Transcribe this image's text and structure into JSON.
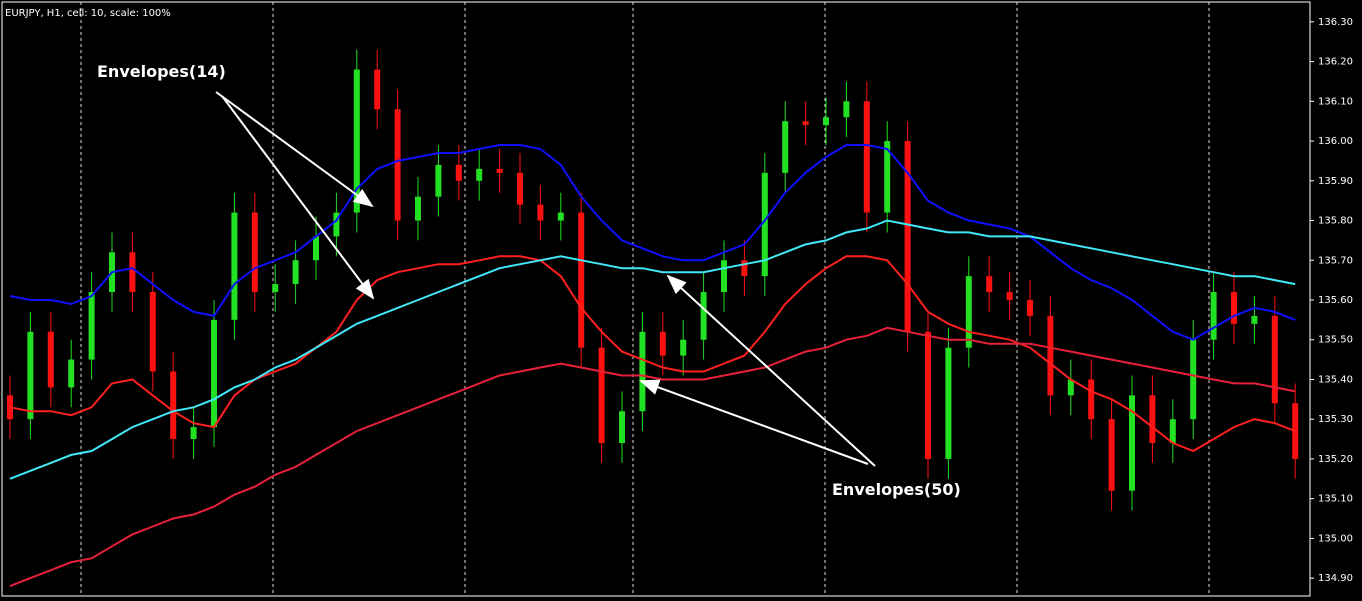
{
  "chart_data": {
    "type": "candlestick",
    "title": "EURJPY, H1, cell: 10, scale: 100%",
    "up_color": "#22e022",
    "down_color": "#ff1010",
    "ylim": [
      134.855,
      136.35
    ],
    "yticks": [
      {
        "value": 136.3,
        "label": "136.30"
      },
      {
        "value": 136.2,
        "label": "136.20"
      },
      {
        "value": 136.1,
        "label": "136.10"
      },
      {
        "value": 136,
        "label": "136.00"
      },
      {
        "value": 135.9,
        "label": "135.90"
      },
      {
        "value": 135.8,
        "label": "135.80"
      },
      {
        "value": 135.7,
        "label": "135.70"
      },
      {
        "value": 135.6,
        "label": "135.60"
      },
      {
        "value": 135.5,
        "label": "135.50"
      },
      {
        "value": 135.4,
        "label": "135.40"
      },
      {
        "value": 135.3,
        "label": "135.30"
      },
      {
        "value": 135.2,
        "label": "135.20"
      },
      {
        "value": 135.1,
        "label": "135.10"
      },
      {
        "value": 135,
        "label": "135.00"
      },
      {
        "value": 134.9,
        "label": "134.90"
      }
    ],
    "ohlc": [
      [
        135.36,
        135.41,
        135.25,
        135.3
      ],
      [
        135.3,
        135.57,
        135.25,
        135.52
      ],
      [
        135.52,
        135.57,
        135.33,
        135.38
      ],
      [
        135.38,
        135.5,
        135.33,
        135.45
      ],
      [
        135.45,
        135.67,
        135.4,
        135.62
      ],
      [
        135.62,
        135.77,
        135.57,
        135.72
      ],
      [
        135.72,
        135.77,
        135.57,
        135.62
      ],
      [
        135.62,
        135.67,
        135.37,
        135.42
      ],
      [
        135.42,
        135.47,
        135.2,
        135.25
      ],
      [
        135.25,
        135.33,
        135.2,
        135.28
      ],
      [
        135.28,
        135.6,
        135.23,
        135.55
      ],
      [
        135.55,
        135.87,
        135.5,
        135.82
      ],
      [
        135.82,
        135.87,
        135.57,
        135.62
      ],
      [
        135.62,
        135.69,
        135.57,
        135.64
      ],
      [
        135.64,
        135.75,
        135.59,
        135.7
      ],
      [
        135.7,
        135.81,
        135.65,
        135.76
      ],
      [
        135.76,
        135.87,
        135.71,
        135.82
      ],
      [
        135.82,
        136.23,
        135.77,
        136.18
      ],
      [
        136.18,
        136.23,
        136.03,
        136.08
      ],
      [
        136.08,
        136.13,
        135.75,
        135.8
      ],
      [
        135.8,
        135.91,
        135.75,
        135.86
      ],
      [
        135.86,
        135.99,
        135.81,
        135.94
      ],
      [
        135.94,
        135.99,
        135.85,
        135.9
      ],
      [
        135.9,
        135.98,
        135.85,
        135.93
      ],
      [
        135.93,
        135.98,
        135.87,
        135.92
      ],
      [
        135.92,
        135.97,
        135.79,
        135.84
      ],
      [
        135.84,
        135.89,
        135.75,
        135.8
      ],
      [
        135.8,
        135.87,
        135.75,
        135.82
      ],
      [
        135.82,
        135.87,
        135.43,
        135.48
      ],
      [
        135.48,
        135.53,
        135.19,
        135.24
      ],
      [
        135.24,
        135.37,
        135.19,
        135.32
      ],
      [
        135.32,
        135.57,
        135.27,
        135.52
      ],
      [
        135.52,
        135.57,
        135.41,
        135.46
      ],
      [
        135.46,
        135.55,
        135.41,
        135.5
      ],
      [
        135.5,
        135.67,
        135.45,
        135.62
      ],
      [
        135.62,
        135.75,
        135.57,
        135.7
      ],
      [
        135.7,
        135.75,
        135.61,
        135.66
      ],
      [
        135.66,
        135.97,
        135.61,
        135.92
      ],
      [
        135.92,
        136.1,
        135.87,
        136.05
      ],
      [
        136.05,
        136.1,
        135.99,
        136.04
      ],
      [
        136.04,
        136.11,
        135.99,
        136.06
      ],
      [
        136.06,
        136.15,
        136.01,
        136.1
      ],
      [
        136.1,
        136.15,
        135.77,
        135.82
      ],
      [
        135.82,
        136.05,
        135.77,
        136.0
      ],
      [
        136.0,
        136.05,
        135.47,
        135.52
      ],
      [
        135.52,
        135.57,
        135.15,
        135.2
      ],
      [
        135.2,
        135.53,
        135.15,
        135.48
      ],
      [
        135.48,
        135.71,
        135.43,
        135.66
      ],
      [
        135.66,
        135.71,
        135.57,
        135.62
      ],
      [
        135.62,
        135.67,
        135.55,
        135.6
      ],
      [
        135.6,
        135.65,
        135.51,
        135.56
      ],
      [
        135.56,
        135.61,
        135.31,
        135.36
      ],
      [
        135.36,
        135.45,
        135.31,
        135.4
      ],
      [
        135.4,
        135.45,
        135.25,
        135.3
      ],
      [
        135.3,
        135.35,
        135.07,
        135.12
      ],
      [
        135.12,
        135.41,
        135.07,
        135.36
      ],
      [
        135.36,
        135.41,
        135.19,
        135.24
      ],
      [
        135.24,
        135.35,
        135.19,
        135.3
      ],
      [
        135.3,
        135.55,
        135.25,
        135.5
      ],
      [
        135.5,
        135.67,
        135.45,
        135.62
      ],
      [
        135.62,
        135.67,
        135.49,
        135.54
      ],
      [
        135.54,
        135.61,
        135.49,
        135.56
      ],
      [
        135.56,
        135.61,
        135.29,
        135.34
      ],
      [
        135.34,
        135.39,
        135.15,
        135.2
      ]
    ],
    "lines": [
      {
        "color": "#1010ff",
        "values": [
          135.61,
          135.6,
          135.6,
          135.59,
          135.61,
          135.67,
          135.68,
          135.64,
          135.6,
          135.57,
          135.56,
          135.64,
          135.68,
          135.7,
          135.72,
          135.76,
          135.8,
          135.88,
          135.93,
          135.95,
          135.96,
          135.97,
          135.97,
          135.98,
          135.99,
          135.99,
          135.98,
          135.94,
          135.86,
          135.8,
          135.75,
          135.73,
          135.71,
          135.7,
          135.7,
          135.72,
          135.74,
          135.8,
          135.87,
          135.92,
          135.96,
          135.99,
          135.99,
          135.98,
          135.92,
          135.85,
          135.82,
          135.8,
          135.79,
          135.78,
          135.76,
          135.72,
          135.68,
          135.65,
          135.63,
          135.6,
          135.56,
          135.52,
          135.5,
          135.53,
          135.56,
          135.58,
          135.57,
          135.55
        ]
      },
      {
        "color": "#ff2020",
        "values": [
          135.33,
          135.32,
          135.32,
          135.31,
          135.33,
          135.39,
          135.4,
          135.36,
          135.32,
          135.29,
          135.28,
          135.36,
          135.4,
          135.42,
          135.44,
          135.48,
          135.52,
          135.6,
          135.65,
          135.67,
          135.68,
          135.69,
          135.69,
          135.7,
          135.71,
          135.71,
          135.7,
          135.66,
          135.58,
          135.52,
          135.47,
          135.45,
          135.43,
          135.42,
          135.42,
          135.44,
          135.46,
          135.52,
          135.59,
          135.64,
          135.68,
          135.71,
          135.71,
          135.7,
          135.64,
          135.57,
          135.54,
          135.52,
          135.51,
          135.5,
          135.48,
          135.44,
          135.4,
          135.37,
          135.35,
          135.32,
          135.28,
          135.24,
          135.22,
          135.25,
          135.28,
          135.3,
          135.29,
          135.27
        ]
      },
      {
        "color": "#40e8f8",
        "values": [
          135.15,
          135.17,
          135.19,
          135.21,
          135.22,
          135.25,
          135.28,
          135.3,
          135.32,
          135.33,
          135.35,
          135.38,
          135.4,
          135.43,
          135.45,
          135.48,
          135.51,
          135.54,
          135.56,
          135.58,
          135.6,
          135.62,
          135.64,
          135.66,
          135.68,
          135.69,
          135.7,
          135.71,
          135.7,
          135.69,
          135.68,
          135.68,
          135.67,
          135.67,
          135.67,
          135.68,
          135.69,
          135.7,
          135.72,
          135.74,
          135.75,
          135.77,
          135.78,
          135.8,
          135.79,
          135.78,
          135.77,
          135.77,
          135.76,
          135.76,
          135.76,
          135.75,
          135.74,
          135.73,
          135.72,
          135.71,
          135.7,
          135.69,
          135.68,
          135.67,
          135.66,
          135.66,
          135.65,
          135.64
        ]
      },
      {
        "color": "#e8203a",
        "values": [
          134.88,
          134.9,
          134.92,
          134.94,
          134.95,
          134.98,
          135.01,
          135.03,
          135.05,
          135.06,
          135.08,
          135.11,
          135.13,
          135.16,
          135.18,
          135.21,
          135.24,
          135.27,
          135.29,
          135.31,
          135.33,
          135.35,
          135.37,
          135.39,
          135.41,
          135.42,
          135.43,
          135.44,
          135.43,
          135.42,
          135.41,
          135.41,
          135.4,
          135.4,
          135.4,
          135.41,
          135.42,
          135.43,
          135.45,
          135.47,
          135.48,
          135.5,
          135.51,
          135.53,
          135.52,
          135.51,
          135.5,
          135.5,
          135.49,
          135.49,
          135.49,
          135.48,
          135.47,
          135.46,
          135.45,
          135.44,
          135.43,
          135.42,
          135.41,
          135.4,
          135.39,
          135.39,
          135.38,
          135.37
        ]
      }
    ],
    "annotations": [
      "Envelopes(14)",
      "Envelopes(50)"
    ]
  }
}
